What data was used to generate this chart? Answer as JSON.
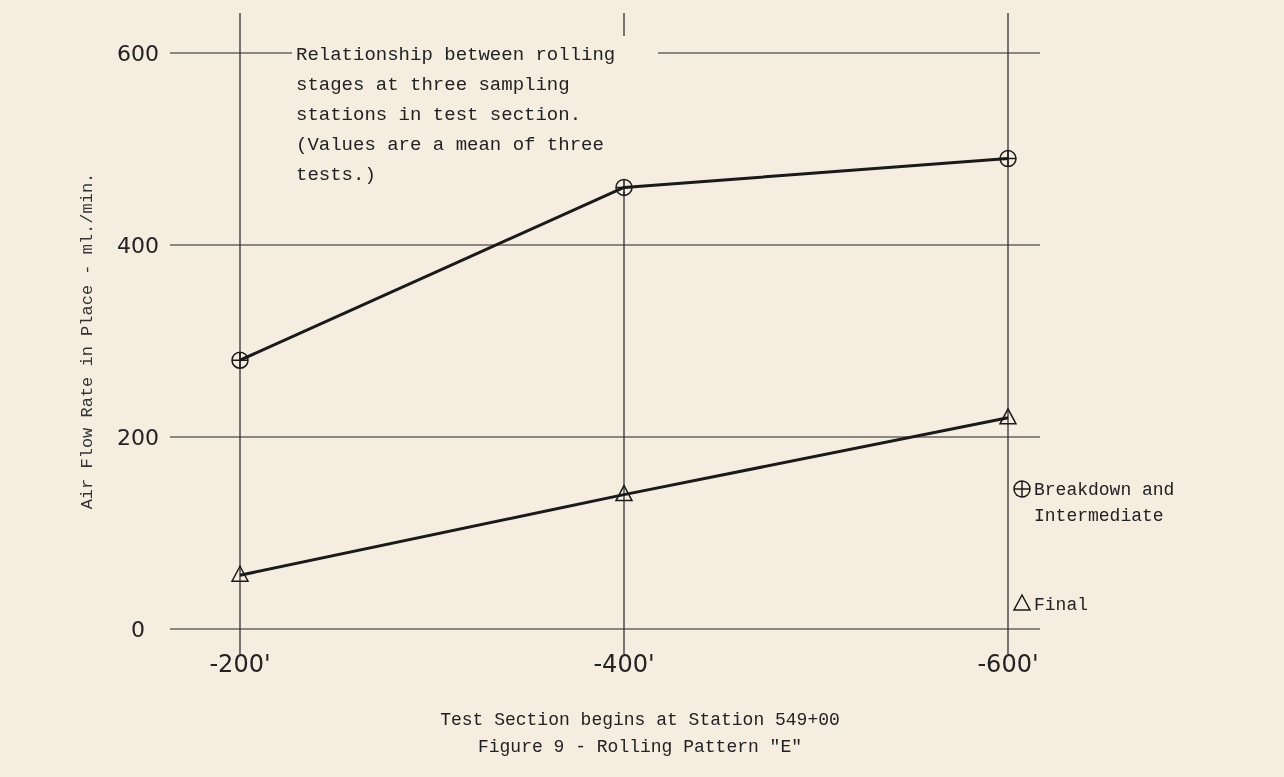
{
  "chart_data": {
    "type": "line",
    "title": "Figure 9 - Rolling Pattern \"E\"",
    "xlabel": "Test Section begins at Station 549+00",
    "ylabel": "Air Flow Rate in Place - ml./min.",
    "categories": [
      "-200'",
      "-400'",
      "-600'"
    ],
    "series": [
      {
        "name": "Breakdown and Intermediate",
        "color": "#1a1a1a",
        "marker": "circle",
        "values": [
          280,
          460,
          490
        ]
      },
      {
        "name": "Final",
        "color": "#1a1a1a",
        "marker": "triangle",
        "values": [
          56,
          140,
          220
        ]
      }
    ],
    "ylim": [
      0,
      600
    ],
    "yticks": [
      0,
      200,
      400,
      600
    ],
    "grid": true,
    "legend": "right",
    "line_style": "solid",
    "annotations": [
      "Relationship between rolling stages at three sampling stations in test section. (Values are a mean of three tests.)"
    ]
  }
}
